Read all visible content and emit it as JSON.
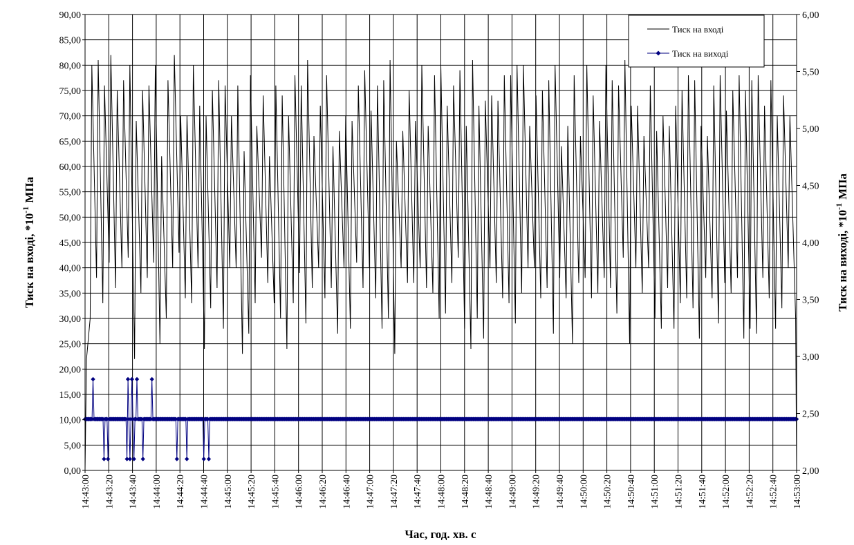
{
  "chart_data": {
    "type": "line",
    "title": "",
    "xlabel": "Час, год. хв. с",
    "ylabel_left": "Тиск на вході, *10",
    "ylabel_right": "Тиск на виході, *10",
    "ylabel_exponent": "-1",
    "ylabel_unit": "МПа",
    "x_start_seconds": 0,
    "x_end_seconds": 600,
    "x_ticks": [
      "14:43:00",
      "14:43:20",
      "14:43:40",
      "14:44:00",
      "14:44:20",
      "14:44:40",
      "14:45:00",
      "14:45:20",
      "14:45:40",
      "14:46:00",
      "14:46:20",
      "14:46:40",
      "14:47:00",
      "14:47:20",
      "14:47:40",
      "14:48:00",
      "14:48:20",
      "14:48:40",
      "14:49:00",
      "14:49:20",
      "14:49:40",
      "14:50:00",
      "14:50:20",
      "14:50:40",
      "14:51:00",
      "14:51:20",
      "14:51:40",
      "14:52:00",
      "14:52:20",
      "14:52:40",
      "14:53:00"
    ],
    "y_left_range": [
      0,
      90
    ],
    "y_left_ticks": [
      "0,00",
      "5,00",
      "10,00",
      "15,00",
      "20,00",
      "25,00",
      "30,00",
      "35,00",
      "40,00",
      "45,00",
      "50,00",
      "55,00",
      "60,00",
      "65,00",
      "70,00",
      "75,00",
      "80,00",
      "85,00",
      "90,00"
    ],
    "y_right_range": [
      2.0,
      6.0
    ],
    "y_right_ticks": [
      "2,00",
      "2,50",
      "3,00",
      "3,50",
      "4,00",
      "4,50",
      "5,00",
      "5,50",
      "6,00"
    ],
    "grid": true,
    "legend_position": "top-right",
    "series": [
      {
        "name": "Тиск на вході",
        "axis": "left",
        "color": "#000000",
        "marker": "none",
        "peaks": [
          80,
          81,
          76,
          82,
          75,
          77,
          80,
          69,
          75,
          76,
          80,
          62,
          77,
          82,
          70,
          70,
          80,
          72,
          70,
          75,
          77,
          76,
          70,
          76,
          63,
          78,
          68,
          74,
          62,
          76,
          74,
          70,
          78,
          76,
          81,
          66,
          72,
          78,
          64,
          67,
          70,
          69,
          76,
          79,
          71,
          76,
          77,
          81,
          65,
          67,
          75,
          69,
          80,
          68,
          78,
          80,
          72,
          76,
          79,
          68,
          81,
          72,
          73,
          74,
          73,
          78,
          78,
          80,
          80,
          68,
          74,
          75,
          77,
          80,
          64,
          68,
          78,
          66,
          80,
          74,
          69,
          80,
          77,
          76,
          81,
          72,
          72,
          66,
          76,
          67,
          70,
          68,
          72,
          75,
          78,
          77,
          68,
          66,
          76,
          78,
          71,
          75,
          78,
          75,
          77,
          78,
          72,
          77,
          70,
          74,
          70
        ],
        "troughs": [
          30,
          38,
          33,
          41,
          36,
          40,
          42,
          22,
          35,
          38,
          41,
          25,
          30,
          40,
          43,
          34,
          33,
          40,
          24,
          32,
          36,
          28,
          40,
          40,
          23,
          27,
          33,
          42,
          37,
          33,
          30,
          24,
          33,
          39,
          29,
          36,
          40,
          34,
          36,
          27,
          40,
          28,
          41,
          36,
          40,
          34,
          28,
          30,
          23,
          40,
          37,
          37,
          40,
          36,
          35,
          30,
          31,
          37,
          42,
          28,
          24,
          30,
          26,
          40,
          37,
          34,
          33,
          29,
          35,
          40,
          40,
          34,
          36,
          27,
          38,
          34,
          25,
          37,
          38,
          34,
          35,
          38,
          36,
          31,
          42,
          25,
          40,
          35,
          40,
          30,
          28,
          36,
          28,
          33,
          34,
          32,
          26,
          38,
          34,
          29,
          37,
          35,
          38,
          26,
          28,
          27,
          38,
          34,
          28,
          32,
          40
        ]
      },
      {
        "name": "Тиск на виході",
        "axis": "right",
        "color": "#000080",
        "marker": "diamond",
        "values": [
          2.45,
          2.45,
          2.45,
          2.45,
          2.45,
          2.45,
          2.45,
          2.45,
          2.8,
          2.45,
          2.45,
          2.45,
          2.45,
          2.45,
          2.45,
          2.45,
          2.45,
          2.45,
          2.45,
          2.1,
          2.45,
          2.45,
          2.45,
          2.1,
          2.45,
          2.45,
          2.45,
          2.45,
          2.45,
          2.45,
          2.45,
          2.45,
          2.45,
          2.45,
          2.45,
          2.45,
          2.45,
          2.45,
          2.45,
          2.45,
          2.45,
          2.45,
          2.1,
          2.8,
          2.45,
          2.1,
          2.45,
          2.8,
          2.45,
          2.1,
          2.45,
          2.45,
          2.8,
          2.45,
          2.45,
          2.45,
          2.45,
          2.45,
          2.1,
          2.45,
          2.45,
          2.45,
          2.45,
          2.45,
          2.45,
          2.45,
          2.45,
          2.8,
          2.45,
          2.45,
          2.45,
          2.45,
          2.45,
          2.45,
          2.45,
          2.45,
          2.45,
          2.45,
          2.45,
          2.45,
          2.45,
          2.45,
          2.45,
          2.45,
          2.45,
          2.45,
          2.45,
          2.45,
          2.45,
          2.45,
          2.45,
          2.45,
          2.1,
          2.45,
          2.45,
          2.45,
          2.45,
          2.45,
          2.45,
          2.45,
          2.45,
          2.45,
          2.1,
          2.45,
          2.45,
          2.45,
          2.45,
          2.45,
          2.45,
          2.45,
          2.45,
          2.45,
          2.45,
          2.45,
          2.45,
          2.45,
          2.45,
          2.45,
          2.45,
          2.1,
          2.45,
          2.45,
          2.45,
          2.45,
          2.1,
          2.45,
          2.45,
          2.45,
          2.45,
          2.45,
          2.45,
          2.45,
          2.45,
          2.45,
          2.45,
          2.45,
          2.45,
          2.45,
          2.45,
          2.45,
          2.45,
          2.45,
          2.45,
          2.45,
          2.45,
          2.45,
          2.45,
          2.45,
          2.45,
          2.45,
          2.45,
          2.45,
          2.45,
          2.45,
          2.45,
          2.45,
          2.45,
          2.45,
          2.45,
          2.45,
          2.45,
          2.45,
          2.45,
          2.45,
          2.45,
          2.45,
          2.45,
          2.45,
          2.45,
          2.45,
          2.45,
          2.45,
          2.45,
          2.45,
          2.45,
          2.45,
          2.45,
          2.45,
          2.45,
          2.45,
          2.45,
          2.45,
          2.45,
          2.45,
          2.45,
          2.45,
          2.45,
          2.45,
          2.45,
          2.45,
          2.45,
          2.45,
          2.45,
          2.45,
          2.45,
          2.45,
          2.45,
          2.45,
          2.45,
          2.45,
          2.45,
          2.45,
          2.45,
          2.45,
          2.45,
          2.45,
          2.45,
          2.45,
          2.45,
          2.45,
          2.45,
          2.45,
          2.45,
          2.45,
          2.45,
          2.45,
          2.45,
          2.45,
          2.45,
          2.45,
          2.45,
          2.45,
          2.45,
          2.45,
          2.45,
          2.45,
          2.45,
          2.45,
          2.45,
          2.45,
          2.45,
          2.45,
          2.45,
          2.45,
          2.45,
          2.45,
          2.45,
          2.45,
          2.45,
          2.45,
          2.45,
          2.45,
          2.45,
          2.45,
          2.45,
          2.45,
          2.45,
          2.45,
          2.45,
          2.45,
          2.45,
          2.45,
          2.45,
          2.45,
          2.45,
          2.45,
          2.45,
          2.45,
          2.45,
          2.45,
          2.45,
          2.45,
          2.45,
          2.45,
          2.45,
          2.45,
          2.45,
          2.45,
          2.45,
          2.45,
          2.45,
          2.45,
          2.45,
          2.45,
          2.45,
          2.45,
          2.45,
          2.45,
          2.45,
          2.45,
          2.45,
          2.45,
          2.45,
          2.45,
          2.45,
          2.45,
          2.45,
          2.45,
          2.45,
          2.45,
          2.45,
          2.45,
          2.45,
          2.45,
          2.45,
          2.45,
          2.45,
          2.45,
          2.45,
          2.45,
          2.45,
          2.45,
          2.45,
          2.45,
          2.45,
          2.45,
          2.45,
          2.45,
          2.45,
          2.45,
          2.45,
          2.45,
          2.45,
          2.45,
          2.45,
          2.45,
          2.45,
          2.45,
          2.45,
          2.45,
          2.45,
          2.45,
          2.45,
          2.45,
          2.45,
          2.45,
          2.45,
          2.45,
          2.45,
          2.45,
          2.45,
          2.45,
          2.45,
          2.45,
          2.45,
          2.45,
          2.45,
          2.45,
          2.45,
          2.45,
          2.45,
          2.45,
          2.45,
          2.45,
          2.45,
          2.45,
          2.45,
          2.45,
          2.45,
          2.45,
          2.45,
          2.45,
          2.45,
          2.45,
          2.45,
          2.45,
          2.45,
          2.45,
          2.45,
          2.45,
          2.45,
          2.45,
          2.45,
          2.45,
          2.45,
          2.45,
          2.45,
          2.45,
          2.45,
          2.45,
          2.45,
          2.45,
          2.45,
          2.45,
          2.45,
          2.45,
          2.45,
          2.45,
          2.45,
          2.45,
          2.45,
          2.45,
          2.45,
          2.45,
          2.45,
          2.45,
          2.45,
          2.45,
          2.45,
          2.45,
          2.45,
          2.45,
          2.45,
          2.45,
          2.45,
          2.45,
          2.45,
          2.45,
          2.45,
          2.45,
          2.45,
          2.45,
          2.45,
          2.45,
          2.45,
          2.45,
          2.45,
          2.45,
          2.45,
          2.45,
          2.45,
          2.45,
          2.45,
          2.45,
          2.45,
          2.45,
          2.45,
          2.45,
          2.45,
          2.45,
          2.45,
          2.45,
          2.45,
          2.45,
          2.45,
          2.45,
          2.45,
          2.45,
          2.45,
          2.45,
          2.45,
          2.45,
          2.45,
          2.45,
          2.45,
          2.45,
          2.45,
          2.45,
          2.45,
          2.45,
          2.45,
          2.45,
          2.45,
          2.45,
          2.45,
          2.45,
          2.45,
          2.45,
          2.45,
          2.45,
          2.45,
          2.45,
          2.45,
          2.45,
          2.45,
          2.45,
          2.45,
          2.45,
          2.45,
          2.45,
          2.45,
          2.45,
          2.45,
          2.45,
          2.45,
          2.45,
          2.45,
          2.45,
          2.45,
          2.45,
          2.45,
          2.45,
          2.45,
          2.45,
          2.45,
          2.45,
          2.45,
          2.45,
          2.45,
          2.45,
          2.45,
          2.45,
          2.45,
          2.45,
          2.45,
          2.45,
          2.45,
          2.45,
          2.45,
          2.45,
          2.45,
          2.45,
          2.45,
          2.45,
          2.45,
          2.45,
          2.45,
          2.45,
          2.45,
          2.45,
          2.45,
          2.45,
          2.45,
          2.45,
          2.45,
          2.45,
          2.45,
          2.45,
          2.45,
          2.45,
          2.45,
          2.45,
          2.45,
          2.45,
          2.45,
          2.45,
          2.45,
          2.45,
          2.45,
          2.45,
          2.45,
          2.45,
          2.45,
          2.45,
          2.45,
          2.45,
          2.45,
          2.45,
          2.45,
          2.45,
          2.45,
          2.45,
          2.45,
          2.45,
          2.45,
          2.45,
          2.45,
          2.45,
          2.45,
          2.45,
          2.45,
          2.45,
          2.45,
          2.45,
          2.45,
          2.45,
          2.45,
          2.45,
          2.45,
          2.45,
          2.45,
          2.45,
          2.45,
          2.45,
          2.45,
          2.45,
          2.45,
          2.45,
          2.45,
          2.45,
          2.45,
          2.45,
          2.45,
          2.45,
          2.45,
          2.45,
          2.45,
          2.45,
          2.45,
          2.45,
          2.45,
          2.45,
          2.45,
          2.45,
          2.45,
          2.45,
          2.45,
          2.45,
          2.45,
          2.45,
          2.45,
          2.45,
          2.45,
          2.45,
          2.45,
          2.45,
          2.45,
          2.45,
          2.45,
          2.45,
          2.45,
          2.45,
          2.45,
          2.45,
          2.45,
          2.45,
          2.45,
          2.45,
          2.45,
          2.45,
          2.45,
          2.45,
          2.45,
          2.45,
          2.45,
          2.45,
          2.45,
          2.45,
          2.45,
          2.45,
          2.45,
          2.45,
          2.45,
          2.45,
          2.45,
          2.45,
          2.45,
          2.45,
          2.45,
          2.45,
          2.45,
          2.45,
          2.45,
          2.45,
          2.45,
          2.45,
          2.45,
          2.45,
          2.45,
          2.45,
          2.45,
          2.45,
          2.45,
          2.45,
          2.45,
          2.45,
          2.45,
          2.45,
          2.45,
          2.45,
          2.45,
          2.45,
          2.45,
          2.45,
          2.45,
          2.45,
          2.45,
          2.45,
          2.45,
          2.45,
          2.45,
          2.45,
          2.45,
          2.45,
          2.45,
          2.45,
          2.45,
          2.45,
          2.45,
          2.45,
          2.45,
          2.45,
          2.45,
          2.45,
          2.45,
          2.45,
          2.45,
          2.45,
          2.45,
          2.45,
          2.45,
          2.45,
          2.45,
          2.45,
          2.45,
          2.45,
          2.45,
          2.45,
          2.45,
          2.45,
          2.45,
          2.45,
          2.45,
          2.45,
          2.45,
          2.45,
          2.45,
          2.45,
          2.45,
          2.45,
          2.45,
          2.45,
          2.45,
          2.45,
          2.45,
          2.45,
          2.45,
          2.45,
          2.45,
          2.45,
          2.45,
          2.45,
          2.45,
          2.45,
          2.45,
          2.45,
          2.45,
          2.45,
          2.45,
          2.45,
          2.45,
          2.45,
          2.45,
          2.45
        ]
      }
    ]
  }
}
